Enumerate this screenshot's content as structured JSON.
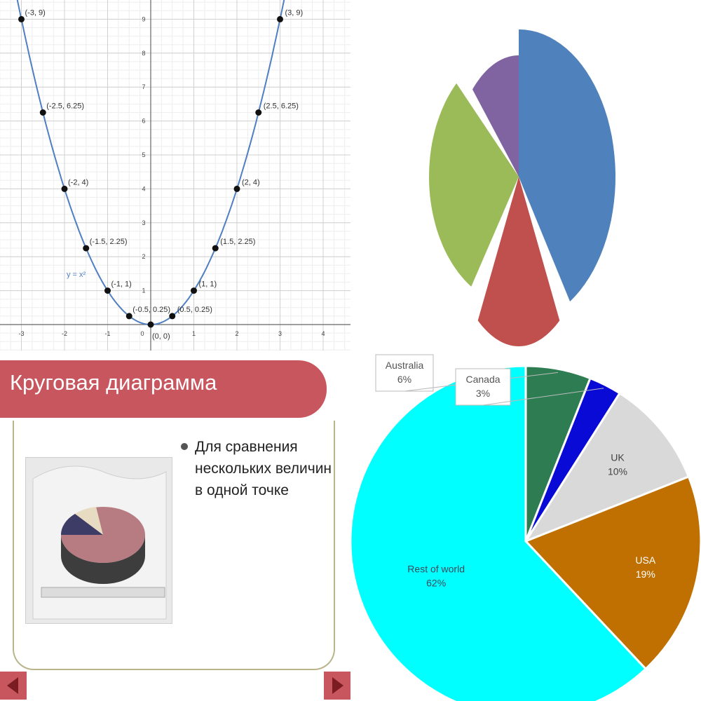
{
  "chart_data": [
    {
      "type": "line",
      "xlim": [
        -3,
        4
      ],
      "ylim": [
        0,
        9
      ],
      "x_ticks": [
        "-3",
        "-2",
        "-1",
        "0",
        "1",
        "2",
        "3",
        "4"
      ],
      "y_ticks": [
        "1",
        "2",
        "3",
        "4",
        "5",
        "6",
        "7",
        "8",
        "9"
      ],
      "grid": true,
      "curve_label": "y = x²",
      "series": [
        {
          "x": [
            -3,
            -2.5,
            -2,
            -1.5,
            -1,
            -0.5,
            0,
            0.5,
            1,
            1.5,
            2,
            2.5,
            3
          ],
          "y": [
            9,
            6.25,
            4,
            2.25,
            1,
            0.25,
            0,
            0.25,
            1,
            2.25,
            4,
            6.25,
            9
          ]
        }
      ],
      "point_labels": [
        "(-3, 9)",
        "(-2.5, 6.25)",
        "(-2, 4)",
        "(-1.5, 2.25)",
        "(-1, 1)",
        "(-0.5, 0.25)",
        "(0, 0)",
        "(0.5, 0.25)",
        "(1, 1)",
        "(1.5, 2.25)",
        "(2, 4)",
        "(2.5, 6.25)",
        "(3, 9)"
      ],
      "line_color": "#4f7fc0"
    },
    {
      "type": "pie",
      "values": [
        37,
        16,
        26,
        11
      ],
      "colors": [
        "#4f81bd",
        "#c0504d",
        "#9bbb59",
        "#8064a2"
      ],
      "legend": "none"
    },
    {
      "type": "pie",
      "categories": [
        "Australia",
        "Canada",
        "UK",
        "USA",
        "Rest of world"
      ],
      "values": [
        6,
        3,
        10,
        19,
        62
      ],
      "labels": [
        "6%",
        "3%",
        "10%",
        "19%",
        "62%"
      ],
      "colors": [
        "#2e7d52",
        "#0a0ad6",
        "#d9d9d9",
        "#c07000",
        "#00ffff"
      ],
      "legend": "none"
    }
  ],
  "slide": {
    "title": "Круговая диаграмма",
    "bullet": "Для сравнения нескольких величин в одной точке",
    "accent": "#c8565f",
    "frame_color": "#b9b48a"
  }
}
